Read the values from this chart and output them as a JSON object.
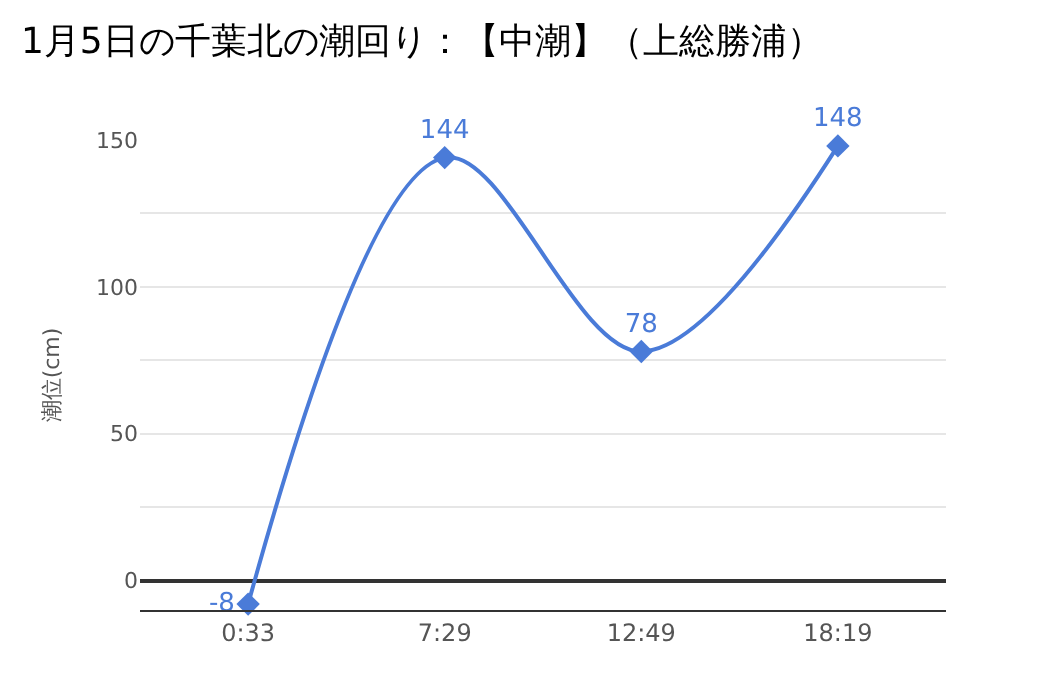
{
  "chart_data": {
    "type": "line",
    "title": "1月5日の千葉北の潮回り：【中潮】（上総勝浦）",
    "ylabel": "潮位(cm)",
    "categories": [
      "0:33",
      "7:29",
      "12:49",
      "18:19"
    ],
    "series": [
      {
        "color": "#4a7bd8",
        "values": [
          -8,
          144,
          78,
          148
        ]
      }
    ],
    "ylim": [
      -10,
      150
    ],
    "yticks": [
      0,
      {
        "value": 25,
        "label": null
      },
      50,
      {
        "value": 75,
        "label": null
      },
      100,
      {
        "value": 125,
        "label": null
      },
      150
    ],
    "grid": "y",
    "marker": "diamond",
    "line_style": "solid",
    "data_labels": true
  }
}
